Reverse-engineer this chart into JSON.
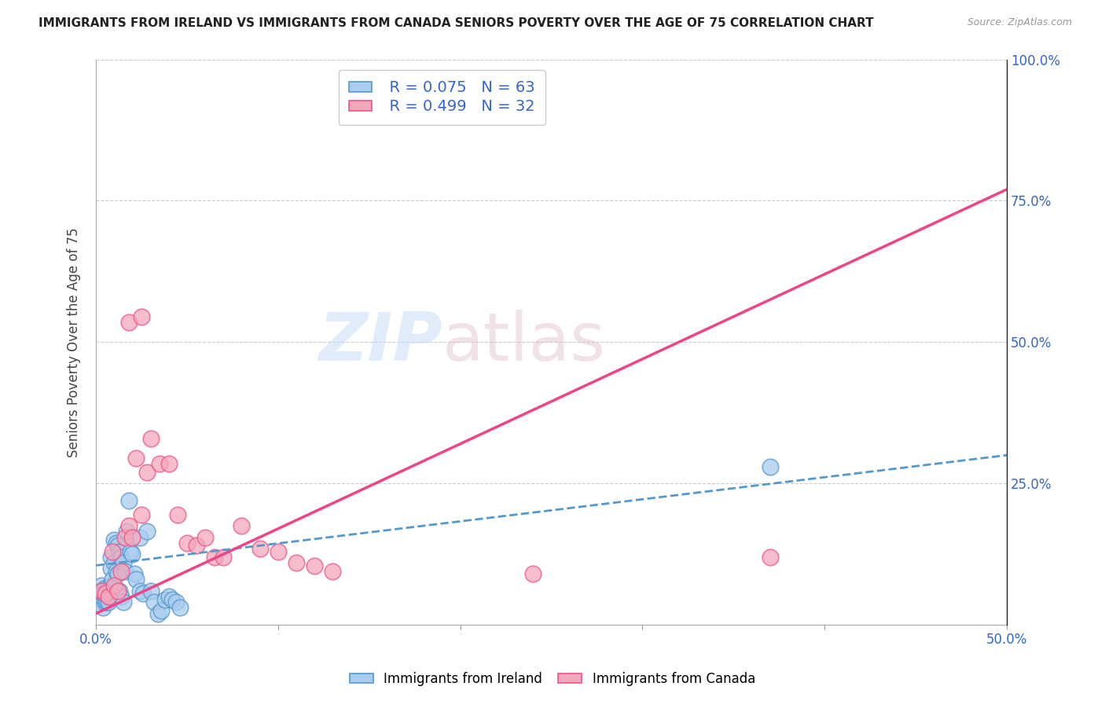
{
  "title": "IMMIGRANTS FROM IRELAND VS IMMIGRANTS FROM CANADA SENIORS POVERTY OVER THE AGE OF 75 CORRELATION CHART",
  "source": "Source: ZipAtlas.com",
  "ylabel": "Seniors Poverty Over the Age of 75",
  "xlim": [
    0,
    0.5
  ],
  "ylim": [
    0,
    1.0
  ],
  "legend_r1": "R = 0.075",
  "legend_n1": "N = 63",
  "legend_r2": "R = 0.499",
  "legend_n2": "N = 32",
  "color_ireland": "#aaccee",
  "color_canada": "#f4a8bc",
  "color_ireland_edge": "#5599cc",
  "color_canada_edge": "#ee5588",
  "color_ireland_line": "#5599cc",
  "color_canada_line": "#ee4488",
  "watermark_zip_color": "#ccddf0",
  "watermark_atlas_color": "#ccaabb",
  "background_color": "#ffffff",
  "grid_color": "#cccccc",
  "ireland_x": [
    0.001,
    0.002,
    0.002,
    0.003,
    0.003,
    0.003,
    0.003,
    0.004,
    0.004,
    0.004,
    0.004,
    0.005,
    0.005,
    0.005,
    0.005,
    0.005,
    0.006,
    0.006,
    0.006,
    0.007,
    0.007,
    0.007,
    0.007,
    0.008,
    0.008,
    0.008,
    0.008,
    0.009,
    0.009,
    0.01,
    0.01,
    0.01,
    0.011,
    0.011,
    0.012,
    0.012,
    0.013,
    0.013,
    0.014,
    0.014,
    0.015,
    0.015,
    0.016,
    0.017,
    0.018,
    0.019,
    0.02,
    0.021,
    0.022,
    0.024,
    0.024,
    0.026,
    0.028,
    0.03,
    0.032,
    0.034,
    0.036,
    0.038,
    0.04,
    0.042,
    0.044,
    0.046,
    0.37
  ],
  "ireland_y": [
    0.05,
    0.06,
    0.045,
    0.055,
    0.07,
    0.06,
    0.05,
    0.06,
    0.055,
    0.04,
    0.03,
    0.065,
    0.055,
    0.05,
    0.045,
    0.04,
    0.06,
    0.05,
    0.04,
    0.065,
    0.055,
    0.05,
    0.04,
    0.12,
    0.1,
    0.07,
    0.05,
    0.08,
    0.06,
    0.15,
    0.11,
    0.065,
    0.145,
    0.095,
    0.14,
    0.09,
    0.13,
    0.06,
    0.12,
    0.05,
    0.11,
    0.04,
    0.095,
    0.165,
    0.22,
    0.13,
    0.125,
    0.09,
    0.08,
    0.155,
    0.06,
    0.055,
    0.165,
    0.06,
    0.04,
    0.02,
    0.025,
    0.045,
    0.05,
    0.045,
    0.04,
    0.03,
    0.28
  ],
  "canada_x": [
    0.003,
    0.005,
    0.007,
    0.009,
    0.01,
    0.012,
    0.014,
    0.016,
    0.018,
    0.02,
    0.022,
    0.025,
    0.028,
    0.03,
    0.035,
    0.04,
    0.045,
    0.05,
    0.055,
    0.06,
    0.065,
    0.07,
    0.08,
    0.09,
    0.1,
    0.11,
    0.12,
    0.13,
    0.24,
    0.37,
    0.018,
    0.025
  ],
  "canada_y": [
    0.06,
    0.055,
    0.05,
    0.13,
    0.07,
    0.06,
    0.095,
    0.155,
    0.175,
    0.155,
    0.295,
    0.195,
    0.27,
    0.33,
    0.285,
    0.285,
    0.195,
    0.145,
    0.14,
    0.155,
    0.12,
    0.12,
    0.175,
    0.135,
    0.13,
    0.11,
    0.105,
    0.095,
    0.09,
    0.12,
    0.535,
    0.545
  ],
  "canada_line_x0": 0.0,
  "canada_line_y0": 0.02,
  "canada_line_x1": 0.5,
  "canada_line_y1": 0.77,
  "ireland_line_x0": 0.0,
  "ireland_line_y0": 0.105,
  "ireland_line_x1": 0.5,
  "ireland_line_y1": 0.3
}
